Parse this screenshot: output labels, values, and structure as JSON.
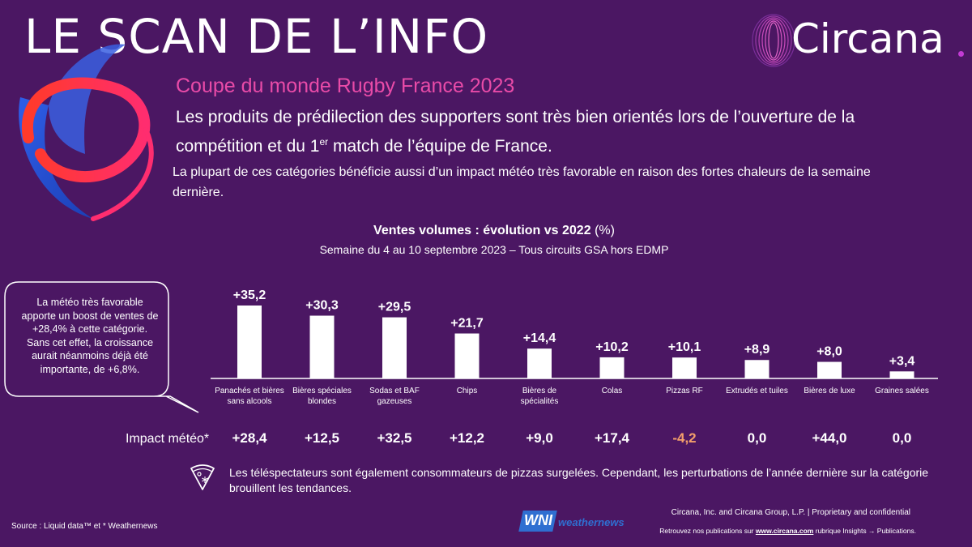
{
  "header": {
    "title": "LE SCAN DE L’INFO",
    "brand": "Circana"
  },
  "intro": {
    "subtitle": "Coupe du monde Rugby France 2023",
    "lead_part1": "Les produits de prédilection des supporters sont très bien orientés lors de l’ouverture de la compétition et du 1",
    "lead_sup": "er",
    "lead_part2": " match de l’équipe de France.",
    "sub_lead": "La plupart de ces catégories bénéficie aussi d’un impact météo très favorable en raison des fortes chaleurs de la semaine dernière."
  },
  "callout": {
    "text": "La météo très favorable apporte un boost de ventes de +28,4% à cette catégorie. Sans cet effet, la croissance aurait néanmoins déjà été importante, de +6,8%."
  },
  "chart_data": {
    "type": "bar",
    "title": "Ventes volumes : évolution  vs 2022",
    "title_unit": "(%)",
    "subtitle": "Semaine du 4 au 10 septembre 2023 – Tous circuits GSA hors EDMP",
    "categories": [
      [
        "Panachés et bières",
        "sans alcools"
      ],
      [
        "Bières spéciales",
        "blondes"
      ],
      [
        "Sodas et BAF",
        "gazeuses"
      ],
      [
        "Chips"
      ],
      [
        "Bières de",
        "spécialités"
      ],
      [
        "Colas"
      ],
      [
        "Pizzas RF"
      ],
      [
        "Extrudés et tuiles"
      ],
      [
        "Bières de luxe"
      ],
      [
        "Graines salées"
      ]
    ],
    "values": [
      35.2,
      30.3,
      29.5,
      21.7,
      14.4,
      10.2,
      10.1,
      8.9,
      8.0,
      3.4
    ],
    "value_labels": [
      "+35,2",
      "+30,3",
      "+29,5",
      "+21,7",
      "+14,4",
      "+10,2",
      "+10,1",
      "+8,9",
      "+8,0",
      "+3,4"
    ],
    "ylim": [
      0,
      40
    ],
    "colors": {
      "bar": "#ffffff",
      "axis": "#ffffff"
    }
  },
  "impact": {
    "label": "Impact météo*",
    "values": [
      "+28,4",
      "+12,5",
      "+32,5",
      "+12,2",
      "+9,0",
      "+17,4",
      "-4,2",
      "0,0",
      "+44,0",
      "0,0"
    ],
    "colors": [
      "#ffffff",
      "#ffffff",
      "#ffffff",
      "#ffffff",
      "#ffffff",
      "#ffffff",
      "#f4a06b",
      "#ffffff",
      "#ffffff",
      "#ffffff"
    ]
  },
  "pizza_note": "Les téléspectateurs sont également consommateurs de pizzas surgelées. Cependant, les perturbations de l’année dernière sur la catégorie brouillent les tendances.",
  "footer": {
    "source": "Source : Liquid data™ et * Weathernews",
    "wni": "WNI",
    "weathernews": "weathernews",
    "legal": "Circana, Inc. and Circana Group, L.P. |  Proprietary and confidential",
    "pub_pre": "Retrouvez nos publications sur ",
    "pub_link": "www.circana.com",
    "pub_post": " rubrique Insights → Publications."
  },
  "theme": {
    "background": "#4b1763",
    "accent_pink": "#e94ba8",
    "negative": "#f4a06b"
  }
}
